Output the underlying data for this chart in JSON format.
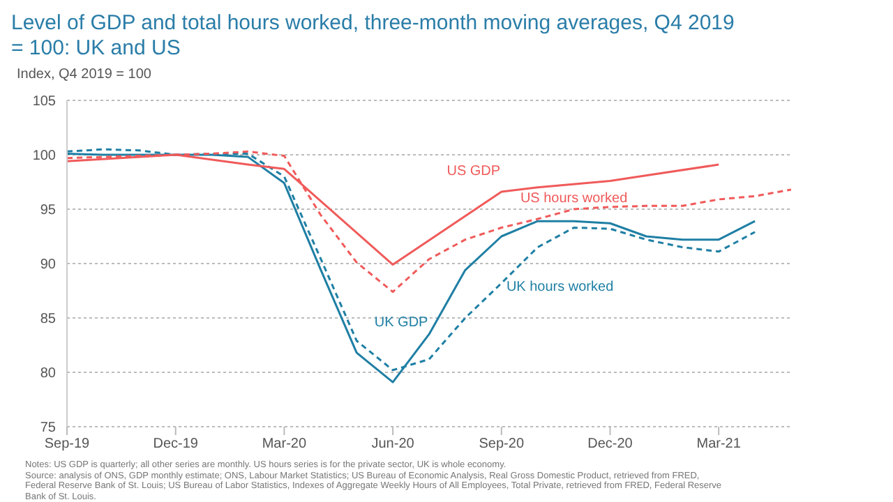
{
  "chart_data": {
    "type": "line",
    "title": "Level of GDP and total hours worked, three-month moving averages, Q4 2019 = 100: UK and US",
    "subtitle": "Index,  Q4 2019 = 100",
    "xlim": [
      "2019-09",
      "2021-05"
    ],
    "xticks": [
      {
        "value": "2019-09",
        "label": "Sep-19"
      },
      {
        "value": "2019-12",
        "label": "Dec-19"
      },
      {
        "value": "2020-03",
        "label": "Mar-20"
      },
      {
        "value": "2020-06",
        "label": "Jun-20"
      },
      {
        "value": "2020-09",
        "label": "Sep-20"
      },
      {
        "value": "2020-12",
        "label": "Dec-20"
      },
      {
        "value": "2021-03",
        "label": "Mar-21"
      }
    ],
    "ylim": [
      75,
      105
    ],
    "yticks": [
      75,
      80,
      85,
      90,
      95,
      100,
      105
    ],
    "grid": "y",
    "legend": false,
    "marker": "none",
    "series": [
      {
        "name": "UK GDP",
        "color": "#1f7fa4",
        "line_style": "solid",
        "x": [
          "2019-09",
          "2019-10",
          "2019-11",
          "2019-12",
          "2020-01",
          "2020-02",
          "2020-03",
          "2020-04",
          "2020-05",
          "2020-06",
          "2020-07",
          "2020-08",
          "2020-09",
          "2020-10",
          "2020-11",
          "2020-12",
          "2021-01",
          "2021-02",
          "2021-03",
          "2021-04"
        ],
        "values": [
          100.1,
          100.0,
          100.0,
          100.0,
          100.0,
          99.8,
          97.4,
          89.5,
          81.8,
          79.1,
          83.5,
          89.4,
          92.5,
          93.9,
          93.9,
          93.7,
          92.5,
          92.2,
          92.2,
          93.9
        ]
      },
      {
        "name": "UK hours worked",
        "color": "#1f7fa4",
        "line_style": "dashed",
        "x": [
          "2019-09",
          "2019-10",
          "2019-11",
          "2019-12",
          "2020-01",
          "2020-02",
          "2020-03",
          "2020-04",
          "2020-05",
          "2020-06",
          "2020-07",
          "2020-08",
          "2020-09",
          "2020-10",
          "2020-11",
          "2020-12",
          "2021-01",
          "2021-02",
          "2021-03",
          "2021-04"
        ],
        "values": [
          100.3,
          100.5,
          100.4,
          100.0,
          100.1,
          100.1,
          98.0,
          90.5,
          82.9,
          80.2,
          81.2,
          85.0,
          88.2,
          91.5,
          93.3,
          93.2,
          92.2,
          91.5,
          91.1,
          92.9
        ]
      },
      {
        "name": "US GDP",
        "color": "#f05a5a",
        "line_style": "solid",
        "x": [
          "2019-09",
          "2019-12",
          "2020-02",
          "2020-03",
          "2020-06",
          "2020-09",
          "2020-10",
          "2020-12",
          "2021-03"
        ],
        "values": [
          99.4,
          100.0,
          99.1,
          98.7,
          89.9,
          96.6,
          97.0,
          97.6,
          99.1
        ]
      },
      {
        "name": "US hours worked",
        "color": "#f05a5a",
        "line_style": "dashed",
        "x": [
          "2019-09",
          "2019-10",
          "2019-11",
          "2019-12",
          "2020-01",
          "2020-02",
          "2020-03",
          "2020-04",
          "2020-05",
          "2020-06",
          "2020-07",
          "2020-08",
          "2020-09",
          "2020-10",
          "2020-11",
          "2020-12",
          "2021-01",
          "2021-02",
          "2021-03",
          "2021-04",
          "2021-05"
        ],
        "values": [
          99.7,
          99.8,
          99.9,
          100.0,
          100.1,
          100.3,
          99.9,
          94.5,
          90.1,
          87.4,
          90.4,
          92.2,
          93.3,
          94.1,
          95.0,
          95.2,
          95.3,
          95.3,
          95.9,
          96.2,
          96.8
        ]
      }
    ],
    "annotations": [
      "Notes: US GDP is quarterly; all other series are monthly. US hours series is for the private sector, UK is whole economy.",
      "Source: analysis of ONS, GDP monthly estimate; ONS, Labour Market Statistics; US Bureau of Economic Analysis, Real Gross Domestic Product, retrieved from FRED, Federal Reserve Bank of St. Louis; US Bureau of Labor Statistics, Indexes of Aggregate Weekly Hours of All Employees, Total Private, retrieved from FRED, Federal Reserve Bank of St. Louis."
    ]
  }
}
